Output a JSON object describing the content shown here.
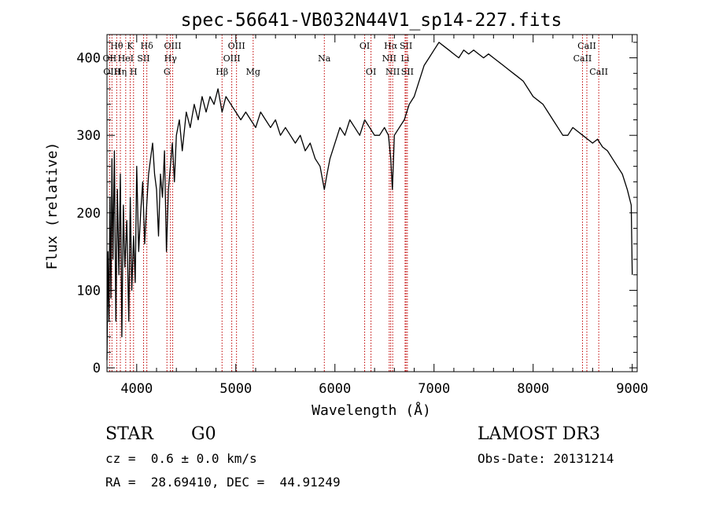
{
  "chart_data": {
    "type": "line",
    "title": "spec-56641-VB032N44V1_sp14-227.fits",
    "xlabel": "Wavelength (Å)",
    "ylabel": "Flux (relative)",
    "xlim": [
      3700,
      9050
    ],
    "ylim": [
      -5,
      430
    ],
    "xticks": [
      4000,
      5000,
      6000,
      7000,
      8000,
      9000
    ],
    "yticks": [
      0,
      100,
      200,
      300,
      400
    ],
    "grid": false,
    "line_color": "#000000",
    "marker_color": "#c00000",
    "series": [
      {
        "name": "flux",
        "x": [
          3700,
          3710,
          3720,
          3730,
          3740,
          3750,
          3760,
          3775,
          3790,
          3805,
          3820,
          3835,
          3850,
          3865,
          3880,
          3900,
          3920,
          3935,
          3950,
          3968,
          3985,
          4000,
          4020,
          4040,
          4060,
          4080,
          4101,
          4120,
          4140,
          4160,
          4180,
          4200,
          4220,
          4240,
          4260,
          4280,
          4300,
          4320,
          4340,
          4360,
          4380,
          4400,
          4430,
          4460,
          4500,
          4540,
          4580,
          4620,
          4660,
          4700,
          4740,
          4780,
          4820,
          4861,
          4900,
          4950,
          5000,
          5050,
          5100,
          5150,
          5200,
          5250,
          5300,
          5350,
          5400,
          5450,
          5500,
          5550,
          5600,
          5650,
          5700,
          5750,
          5800,
          5850,
          5893,
          5920,
          5950,
          6000,
          6050,
          6100,
          6150,
          6200,
          6250,
          6300,
          6350,
          6400,
          6450,
          6500,
          6540,
          6563,
          6580,
          6600,
          6650,
          6700,
          6750,
          6800,
          6850,
          6900,
          6950,
          7000,
          7050,
          7100,
          7150,
          7200,
          7250,
          7300,
          7350,
          7400,
          7450,
          7500,
          7550,
          7600,
          7650,
          7700,
          7750,
          7800,
          7850,
          7900,
          7950,
          8000,
          8050,
          8100,
          8150,
          8200,
          8250,
          8300,
          8350,
          8400,
          8450,
          8500,
          8550,
          8600,
          8650,
          8700,
          8750,
          8800,
          8850,
          8900,
          8950,
          8990,
          9000
        ],
        "y": [
          10,
          150,
          60,
          220,
          90,
          270,
          140,
          280,
          60,
          230,
          120,
          250,
          40,
          210,
          130,
          190,
          60,
          220,
          100,
          170,
          110,
          260,
          150,
          200,
          240,
          160,
          210,
          250,
          270,
          290,
          250,
          230,
          170,
          250,
          220,
          280,
          150,
          230,
          260,
          290,
          240,
          300,
          320,
          280,
          330,
          310,
          340,
          320,
          350,
          330,
          350,
          340,
          360,
          330,
          350,
          340,
          330,
          320,
          330,
          320,
          310,
          330,
          320,
          310,
          320,
          300,
          310,
          300,
          290,
          300,
          280,
          290,
          270,
          260,
          230,
          250,
          270,
          290,
          310,
          300,
          320,
          310,
          300,
          320,
          310,
          300,
          300,
          310,
          300,
          270,
          230,
          300,
          310,
          320,
          340,
          350,
          370,
          390,
          400,
          410,
          420,
          415,
          410,
          405,
          400,
          410,
          405,
          410,
          405,
          400,
          405,
          400,
          395,
          390,
          385,
          380,
          375,
          370,
          360,
          350,
          345,
          340,
          330,
          320,
          310,
          300,
          300,
          310,
          305,
          300,
          295,
          290,
          295,
          285,
          280,
          270,
          260,
          250,
          230,
          210,
          120
        ]
      }
    ],
    "line_markers": [
      {
        "name": "Hθ",
        "x": 3798,
        "row": 1
      },
      {
        "name": "OII",
        "x": 3727,
        "row": 2
      },
      {
        "name": "OIII",
        "x": 3750,
        "row": 3
      },
      {
        "name": "K",
        "x": 3934,
        "row": 1
      },
      {
        "name": "HeI",
        "x": 3889,
        "row": 2
      },
      {
        "name": "Hη",
        "x": 3835,
        "row": 3
      },
      {
        "name": "Hδ",
        "x": 4102,
        "row": 1
      },
      {
        "name": "SII",
        "x": 4069,
        "row": 2
      },
      {
        "name": "H",
        "x": 3968,
        "row": 3
      },
      {
        "name": "OIII",
        "x": 4363,
        "row": 1
      },
      {
        "name": "Hγ",
        "x": 4341,
        "row": 2
      },
      {
        "name": "G",
        "x": 4305,
        "row": 3
      },
      {
        "name": "Hβ",
        "x": 4861,
        "row": 3
      },
      {
        "name": "OIII",
        "x": 5007,
        "row": 1
      },
      {
        "name": "OIII",
        "x": 4959,
        "row": 2
      },
      {
        "name": "Mg",
        "x": 5175,
        "row": 3
      },
      {
        "name": "Na",
        "x": 5893,
        "row": 2
      },
      {
        "name": "OI",
        "x": 6300,
        "row": 1
      },
      {
        "name": "OI",
        "x": 6364,
        "row": 3
      },
      {
        "name": "Hα",
        "x": 6563,
        "row": 1
      },
      {
        "name": "NII",
        "x": 6548,
        "row": 2
      },
      {
        "name": "NII",
        "x": 6583,
        "row": 3
      },
      {
        "name": "SII",
        "x": 6717,
        "row": 1
      },
      {
        "name": "Li",
        "x": 6708,
        "row": 2
      },
      {
        "name": "SII",
        "x": 6731,
        "row": 3
      },
      {
        "name": "CaII",
        "x": 8542,
        "row": 1
      },
      {
        "name": "CaII",
        "x": 8498,
        "row": 2
      },
      {
        "name": "CaII",
        "x": 8662,
        "row": 3
      }
    ]
  },
  "info": {
    "class_label": "STAR",
    "subclass": "G0",
    "survey": "LAMOST DR3",
    "redshift": "cz =  0.6 ± 0.0 km/s",
    "obs_date": "Obs-Date: 20131214",
    "coords": "RA =  28.69410, DEC =  44.91249"
  }
}
